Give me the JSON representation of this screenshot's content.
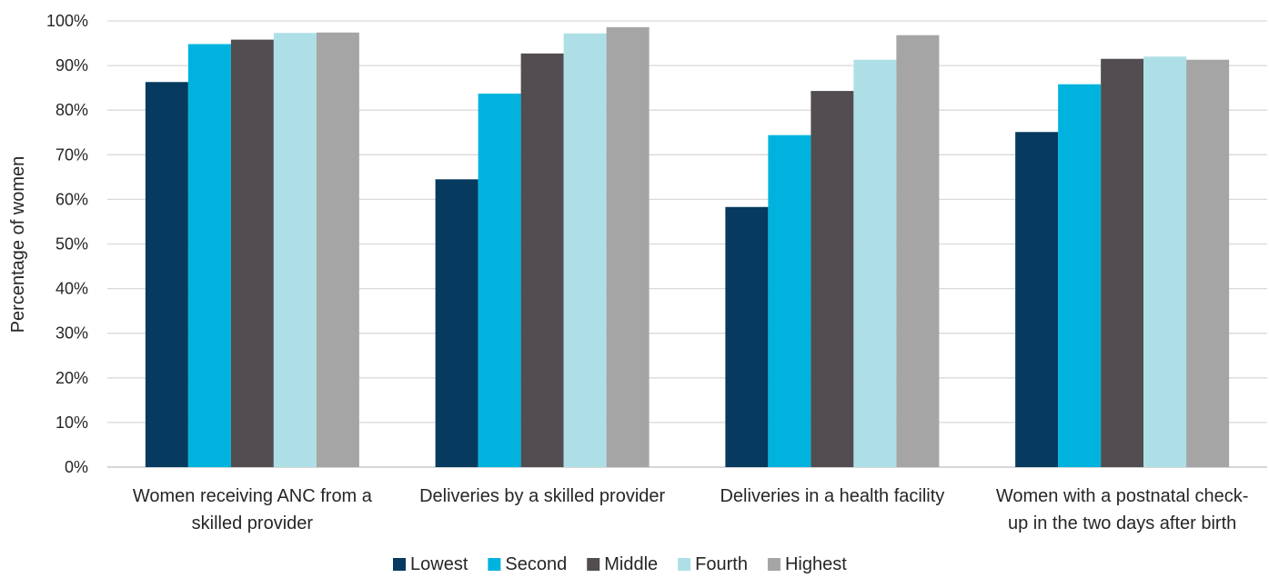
{
  "chart_data": {
    "type": "bar",
    "title": "",
    "xlabel": "",
    "ylabel": "Percentage of women",
    "ylim": [
      0,
      100
    ],
    "yticks": [
      "0%",
      "10%",
      "20%",
      "30%",
      "40%",
      "50%",
      "60%",
      "70%",
      "80%",
      "90%",
      "100%"
    ],
    "grid": true,
    "legend_position": "bottom",
    "categories": [
      [
        "Women receiving ANC from a",
        "skilled provider"
      ],
      [
        "Deliveries by a skilled provider"
      ],
      [
        "Deliveries in a health facility"
      ],
      [
        "Women with a postnatal check-",
        "up in the two days after birth"
      ]
    ],
    "series": [
      {
        "name": "Lowest",
        "color": "#063a5e",
        "values": [
          86.3,
          64.5,
          58.3,
          75.1
        ]
      },
      {
        "name": "Second",
        "color": "#00b3de",
        "values": [
          94.8,
          83.7,
          74.4,
          85.8
        ]
      },
      {
        "name": "Middle",
        "color": "#524d50",
        "values": [
          95.8,
          92.7,
          84.3,
          91.5
        ]
      },
      {
        "name": "Fourth",
        "color": "#aedfe7",
        "values": [
          97.3,
          97.2,
          91.3,
          92.0
        ]
      },
      {
        "name": "Highest",
        "color": "#a5a5a5",
        "values": [
          97.4,
          98.6,
          96.8,
          91.3
        ]
      }
    ]
  }
}
